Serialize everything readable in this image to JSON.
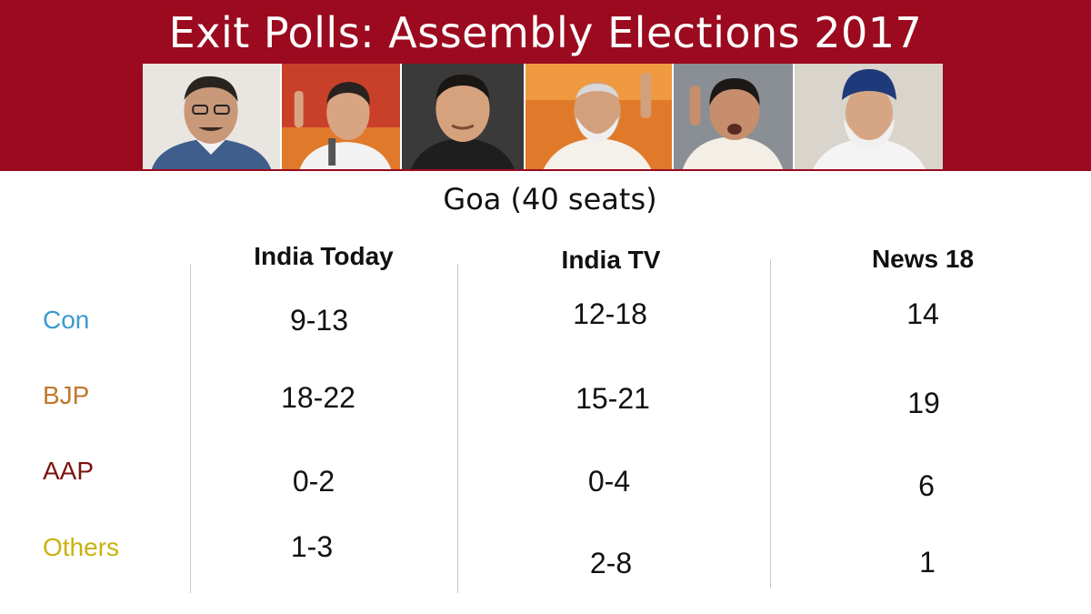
{
  "banner": {
    "title": "Exit Polls: Assembly Elections 2017",
    "background_color": "#9b0a1f",
    "photos": [
      "portrait-1",
      "portrait-2",
      "portrait-3",
      "portrait-4",
      "portrait-5",
      "portrait-6"
    ]
  },
  "subtitle": "Goa (40 seats)",
  "columns": [
    "India Today",
    "India TV",
    "News 18"
  ],
  "rows": [
    {
      "label": "Con",
      "color": "#3a9ad1",
      "values": [
        "9-13",
        "12-18",
        "14"
      ]
    },
    {
      "label": "BJP",
      "color": "#c0782a",
      "values": [
        "18-22",
        "15-21",
        "19"
      ]
    },
    {
      "label": "AAP",
      "color": "#7a1410",
      "values": [
        "0-2",
        "0-4",
        "6"
      ]
    },
    {
      "label": "Others",
      "color": "#c9b20e",
      "values": [
        "1-3",
        "2-8",
        "1"
      ]
    }
  ]
}
